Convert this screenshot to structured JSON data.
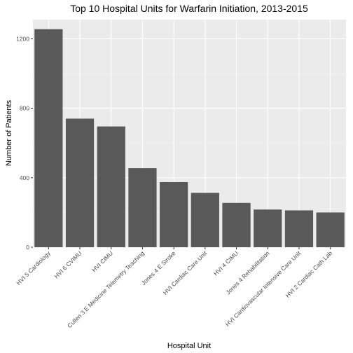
{
  "chart_data": {
    "type": "bar",
    "title": "Top 10 Hospital Units for Warfarin Initiation, 2013-2015",
    "xlabel": "Hospital Unit",
    "ylabel": "Number of Patients",
    "categories": [
      "HVI 5 Cardiology",
      "HVI 6 CVIMU",
      "HVI CIMU",
      "Cullen 3 E Medicine Telemetry Teaching",
      "Jones 4 E Stroke",
      "HVI Cardiac Care Unit",
      "HVI 4 CIMU",
      "Jones 4 Rehabilitation",
      "HVI Cardiovascular Intensive Care Unit",
      "HVI 2 Cardiac Cath Lab"
    ],
    "values": [
      1255,
      740,
      695,
      455,
      375,
      313,
      255,
      217,
      212,
      200
    ],
    "ylim": [
      0,
      1310
    ],
    "yticks": [
      0,
      400,
      800,
      1200
    ],
    "grid": true,
    "colors": {
      "bar": "#595959",
      "panel": "#ebebeb",
      "grid_major": "#ffffff",
      "grid_minor": "#f5f5f5",
      "tick_label": "#4d4d4d",
      "tick_mark": "#333333"
    }
  }
}
